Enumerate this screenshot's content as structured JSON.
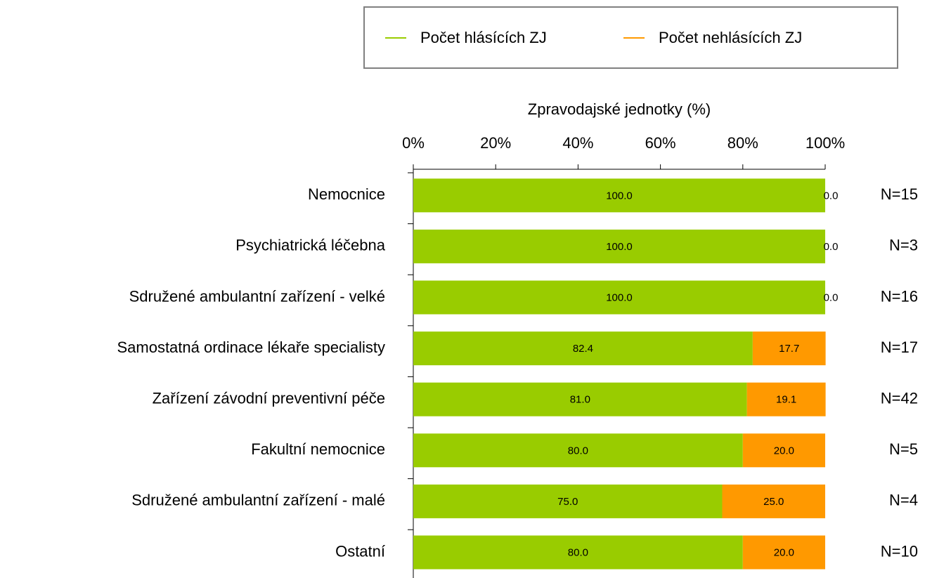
{
  "chart_data": {
    "type": "stacked_barh",
    "x_label": "Zpravodajské jednotky (%)",
    "categories": [
      "Nemocnice",
      "Psychiatrická léčebna",
      "Sdružené ambulantní zařízení - velké",
      "Samostatná ordinace lékaře specialisty",
      "Zařízení závodní preventivní péče",
      "Fakultní nemocnice",
      "Sdružené ambulantní zařízení - malé",
      "Ostatní"
    ],
    "series": [
      {
        "name": "Počet hlásících ZJ",
        "color": "#99cc00",
        "values": [
          100,
          100,
          100,
          82.4,
          81,
          80,
          75,
          80
        ],
        "value_labels": [
          "100.0",
          "100.0",
          "100.0",
          "82.4",
          "81.0",
          "80.0",
          "75.0",
          "80.0"
        ]
      },
      {
        "name": "Počet nehlásících ZJ",
        "color": "#ff9900",
        "values": [
          0,
          0,
          0,
          17.7,
          19.1,
          20,
          25,
          20
        ],
        "value_labels": [
          "0.0",
          "0.0",
          "0.0",
          "17.7",
          "19.1",
          "20.0",
          "25.0",
          "20.0"
        ]
      }
    ],
    "n_labels": [
      "N=15",
      "N=3",
      "N=16",
      "N=17",
      "N=42",
      "N=5",
      "N=4",
      "N=10"
    ],
    "xlim": [
      0,
      100
    ],
    "xticks": [
      {
        "value": 0,
        "label": "0%"
      },
      {
        "value": 20,
        "label": "20%"
      },
      {
        "value": 40,
        "label": "40%"
      },
      {
        "value": 60,
        "label": "60%"
      },
      {
        "value": 80,
        "label": "80%"
      },
      {
        "value": 100,
        "label": "100%"
      }
    ],
    "legend": "top"
  }
}
